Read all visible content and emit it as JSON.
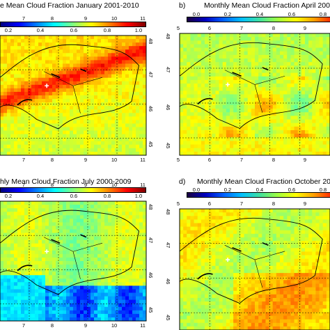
{
  "panels": [
    {
      "id": "a",
      "title": "e Mean Cloud Fraction January 2001-2010",
      "label": "",
      "colorbar_ticks": [
        "0.2",
        "0.4",
        "0.6",
        "0.8",
        "1.0"
      ],
      "x_ticks": [
        "7",
        "8",
        "9",
        "10",
        "11"
      ],
      "x_ticks_bottom": [
        "7",
        "8",
        "9",
        "10",
        "11"
      ],
      "y_ticks": [
        "48",
        "47",
        "46",
        "45"
      ],
      "colormap": "jet",
      "pattern": "january"
    },
    {
      "id": "b",
      "title": "Monthly Mean Cloud Fraction April 200",
      "label": "b)",
      "colorbar_ticks": [
        "0.0",
        "0.2",
        "0.4",
        "0.6",
        "0.8"
      ],
      "x_ticks": [
        "5",
        "6",
        "7",
        "8",
        "9"
      ],
      "x_ticks_bottom": [
        "5",
        "6",
        "7",
        "8",
        "9"
      ],
      "y_ticks": [
        "48",
        "47",
        "46",
        "45"
      ],
      "colormap": "jet",
      "pattern": "april"
    },
    {
      "id": "c",
      "title": "hly Mean Cloud Fraction July 2000-2009",
      "label": "",
      "colorbar_ticks": [
        "0.2",
        "0.4",
        "0.6",
        "0.8",
        "1.0"
      ],
      "x_ticks": [
        "7",
        "8",
        "9",
        "10",
        "11"
      ],
      "x_ticks_bottom": [
        "7",
        "8",
        "9",
        "10",
        "11"
      ],
      "y_ticks": [
        "48",
        "47",
        "46",
        "45"
      ],
      "colormap": "jet",
      "pattern": "july"
    },
    {
      "id": "d",
      "title": "Monthly Mean Cloud Fraction October 200",
      "label": "d)",
      "colorbar_ticks": [
        "0.0",
        "0.2",
        "0.4",
        "0.6",
        "0.8"
      ],
      "x_ticks": [
        "5",
        "6",
        "7",
        "8",
        "9"
      ],
      "x_ticks_bottom": [
        "5",
        "6",
        "7",
        "8",
        "9"
      ],
      "y_ticks": [
        "48",
        "47",
        "46",
        "45"
      ],
      "colormap": "jet",
      "pattern": "october"
    }
  ]
}
